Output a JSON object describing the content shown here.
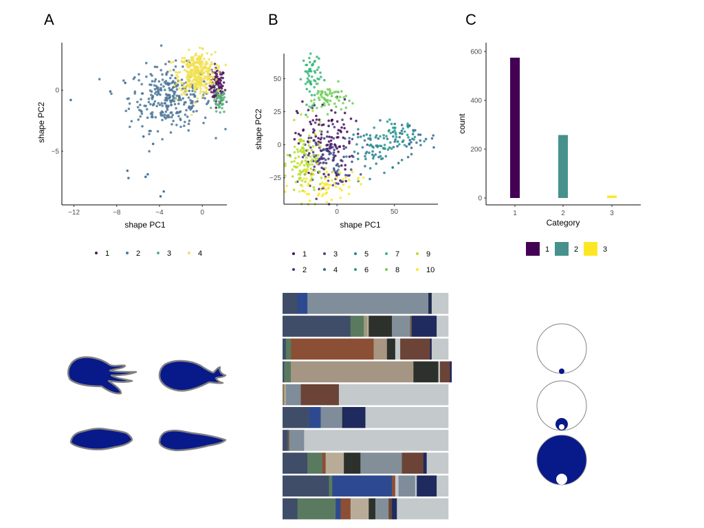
{
  "panels": [
    {
      "letter": "A"
    },
    {
      "letter": "B"
    },
    {
      "letter": "C"
    }
  ],
  "chart_data": [
    {
      "id": "A",
      "type": "scatter",
      "xlabel": "shape PC1",
      "ylabel": "shape PC2",
      "xlim": [
        -13,
        2.3
      ],
      "ylim": [
        -9.4,
        3.9
      ],
      "xticks": [
        -12,
        -8,
        -4,
        0
      ],
      "yticks": [
        -5,
        0
      ],
      "legend_position": "bottom",
      "legend": [
        "1",
        "2",
        "3",
        "4"
      ],
      "series": [
        {
          "name": "1",
          "color": "#4f1a5e",
          "count": 90,
          "center": [
            1.4,
            0.4
          ],
          "spread": [
            0.35,
            0.7
          ]
        },
        {
          "name": "2",
          "color": "#4b7799",
          "count": 300,
          "center": [
            -3.0,
            -0.6
          ],
          "spread": [
            1.9,
            1.3
          ],
          "outliers": [
            [
              -12.3,
              -0.8
            ],
            [
              -8.6,
              -0.1
            ],
            [
              -7.2,
              0.6
            ],
            [
              -7.0,
              -6.6
            ],
            [
              -6.9,
              -7.2
            ],
            [
              -5.3,
              -7.1
            ],
            [
              -5.1,
              -6.9
            ],
            [
              -3.9,
              -8.7
            ],
            [
              -3.6,
              -8.3
            ],
            [
              -4.6,
              -4.4
            ],
            [
              -5.5,
              -3.8
            ]
          ]
        },
        {
          "name": "3",
          "color": "#59b37a",
          "count": 45,
          "center": [
            1.6,
            -1.0
          ],
          "spread": [
            0.3,
            0.5
          ]
        },
        {
          "name": "4",
          "color": "#f2e055",
          "count": 330,
          "center": [
            -0.5,
            1.4
          ],
          "spread": [
            0.85,
            0.85
          ]
        }
      ]
    },
    {
      "id": "B",
      "type": "scatter",
      "xlabel": "shape PC1",
      "ylabel": "shape PC2",
      "xlim": [
        -45,
        88
      ],
      "ylim": [
        -45,
        69
      ],
      "xticks": [
        0,
        50
      ],
      "yticks": [
        -25,
        0,
        25,
        50
      ],
      "legend_position": "bottom",
      "legend": [
        "1",
        "2",
        "3",
        "4",
        "5",
        "6",
        "7",
        "8",
        "9",
        "10"
      ],
      "series": [
        {
          "name": "1",
          "color": "#440c58",
          "count": 110,
          "center": [
            -10,
            2
          ],
          "spread": [
            12,
            16
          ]
        },
        {
          "name": "2",
          "color": "#46337d",
          "count": 60,
          "center": [
            -12,
            -10
          ],
          "spread": [
            10,
            14
          ]
        },
        {
          "name": "3",
          "color": "#3e4a89",
          "count": 50,
          "center": [
            -5,
            -12
          ],
          "spread": [
            12,
            10
          ]
        },
        {
          "name": "4",
          "color": "#31688e",
          "count": 40,
          "center": [
            60,
            5
          ],
          "spread": [
            14,
            6
          ]
        },
        {
          "name": "5",
          "color": "#26828e",
          "count": 60,
          "center": [
            35,
            -5
          ],
          "spread": [
            12,
            8
          ]
        },
        {
          "name": "6",
          "color": "#1f9e89",
          "count": 40,
          "center": [
            50,
            8
          ],
          "spread": [
            10,
            5
          ]
        },
        {
          "name": "7",
          "color": "#35b779",
          "count": 55,
          "center": [
            -22,
            52
          ],
          "spread": [
            4,
            10
          ]
        },
        {
          "name": "8",
          "color": "#6ece58",
          "count": 60,
          "center": [
            -8,
            35
          ],
          "spread": [
            8,
            5
          ]
        },
        {
          "name": "9",
          "color": "#b5de2b",
          "count": 110,
          "center": [
            -28,
            -15
          ],
          "spread": [
            8,
            14
          ]
        },
        {
          "name": "10",
          "color": "#fde725",
          "count": 60,
          "center": [
            -10,
            -30
          ],
          "spread": [
            15,
            6
          ]
        }
      ]
    },
    {
      "id": "C",
      "type": "bar",
      "xlabel": "Category",
      "ylabel": "count",
      "categories": [
        "1",
        "2",
        "3"
      ],
      "values": [
        575,
        258,
        10
      ],
      "colors": [
        "#440154",
        "#47918c",
        "#fde725"
      ],
      "ylim": [
        0,
        600
      ],
      "yticks": [
        0,
        200,
        400,
        600
      ],
      "legend_position": "bottom",
      "legend": [
        "1",
        "2",
        "3"
      ]
    }
  ],
  "color_bars": {
    "rows": [
      [
        [
          "#3f4d69",
          0.09
        ],
        [
          "#2d4a90",
          0.06
        ],
        [
          "#7f8e9a",
          0.73
        ],
        [
          "#1f2b4d",
          0.02
        ],
        [
          "#c4c9cb",
          0.1
        ]
      ],
      [
        [
          "#3f4d69",
          0.41
        ],
        [
          "#5a7a5f",
          0.08
        ],
        [
          "#9a9a7d",
          0.02
        ],
        [
          "#b8ac98",
          0.01
        ],
        [
          "#2d312c",
          0.14
        ],
        [
          "#838f98",
          0.11
        ],
        [
          "#6b5a47",
          0.01
        ],
        [
          "#1f2a5e",
          0.15
        ],
        [
          "#c4c9cb",
          0.07
        ]
      ],
      [
        [
          "#3f4d69",
          0.02
        ],
        [
          "#5a7a5f",
          0.03
        ],
        [
          "#8b4f36",
          0.5
        ],
        [
          "#a99680",
          0.08
        ],
        [
          "#2d312c",
          0.05
        ],
        [
          "#c4c9cb",
          0.03
        ],
        [
          "#6b4437",
          0.18
        ],
        [
          "#1f2a5e",
          0.01
        ],
        [
          "#c4c9cb",
          0.1
        ]
      ],
      [
        [
          "#3f4d69",
          0.01
        ],
        [
          "#5a7a5f",
          0.04
        ],
        [
          "#a49683",
          0.74
        ],
        [
          "#2d312c",
          0.15
        ],
        [
          "#c4c9cb",
          0.01
        ],
        [
          "#6b4437",
          0.06
        ],
        [
          "#1f2a5e",
          0.01
        ]
      ],
      [
        [
          "#8a7a5a",
          0.01
        ],
        [
          "#b8ac98",
          0.01
        ],
        [
          "#7e8d99",
          0.09
        ],
        [
          "#6b4437",
          0.23
        ],
        [
          "#c4c9cb",
          0.66
        ]
      ],
      [
        [
          "#3f4d69",
          0.16
        ],
        [
          "#2d4a90",
          0.07
        ],
        [
          "#7e8d99",
          0.13
        ],
        [
          "#1f2b4d",
          0.01
        ],
        [
          "#1f2a5e",
          0.13
        ],
        [
          "#c4c9cb",
          0.5
        ]
      ],
      [
        [
          "#3f4d69",
          0.03
        ],
        [
          "#6b5a47",
          0.01
        ],
        [
          "#7e8d99",
          0.09
        ],
        [
          "#c4c9cb",
          0.87
        ]
      ],
      [
        [
          "#3f4d69",
          0.15
        ],
        [
          "#5a7a5f",
          0.09
        ],
        [
          "#8b4f36",
          0.02
        ],
        [
          "#b8ac98",
          0.11
        ],
        [
          "#2d312c",
          0.1
        ],
        [
          "#838f98",
          0.25
        ],
        [
          "#6b4437",
          0.13
        ],
        [
          "#1f2a5e",
          0.02
        ],
        [
          "#c4c9cb",
          0.13
        ]
      ],
      [
        [
          "#3f4d69",
          0.28
        ],
        [
          "#5a7a5f",
          0.02
        ],
        [
          "#2d4a90",
          0.36
        ],
        [
          "#8b4f36",
          0.02
        ],
        [
          "#c4c9cb",
          0.02
        ],
        [
          "#7e8d99",
          0.1
        ],
        [
          "#c4c9cb",
          0.01
        ],
        [
          "#1f2a5e",
          0.12
        ],
        [
          "#c4c9cb",
          0.07
        ]
      ],
      [
        [
          "#3f4d69",
          0.09
        ],
        [
          "#5a7a5f",
          0.23
        ],
        [
          "#2d4a90",
          0.03
        ],
        [
          "#8b4f36",
          0.06
        ],
        [
          "#b8ac98",
          0.11
        ],
        [
          "#2d312c",
          0.04
        ],
        [
          "#838f98",
          0.08
        ],
        [
          "#6b4437",
          0.02
        ],
        [
          "#1f2a5e",
          0.03
        ],
        [
          "#c4c9cb",
          0.31
        ]
      ]
    ]
  },
  "shapes": {
    "fill": "#08198a",
    "stroke": "#808080"
  },
  "circles": {
    "fill": "#08198a",
    "items": [
      {
        "outer_fill": "#ffffff",
        "dot": "small-blue"
      },
      {
        "outer_fill": "#ffffff",
        "dot": "blue-with-hole"
      },
      {
        "outer_fill": "#08198a",
        "dot": "white"
      }
    ]
  }
}
